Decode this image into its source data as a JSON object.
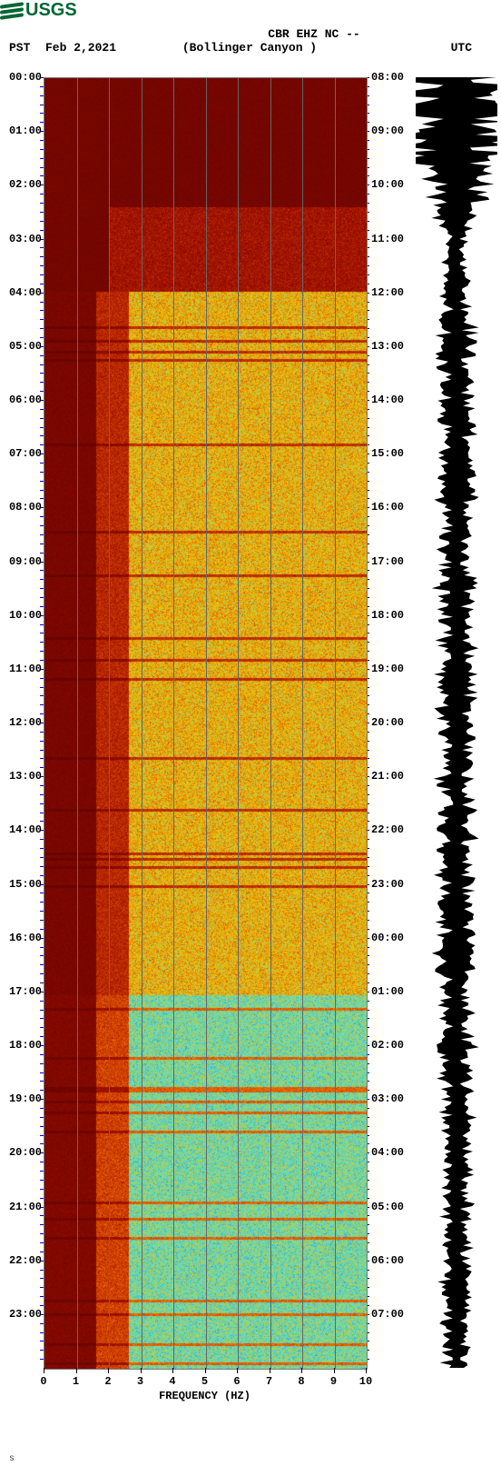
{
  "logo": {
    "text": "USGS",
    "color": "#006633"
  },
  "header": {
    "station_code": "CBR EHZ NC --",
    "location": "(Bollinger Canyon )",
    "tz_left": "PST",
    "tz_right": "UTC",
    "date": "Feb 2,2021"
  },
  "spectrogram": {
    "type": "spectrogram",
    "x_axis": {
      "title": "FREQUENCY (HZ)",
      "min": 0,
      "max": 10,
      "ticks": [
        0,
        1,
        2,
        3,
        4,
        5,
        6,
        7,
        8,
        9,
        10
      ],
      "tick_color": "#000000",
      "title_fontsize": 13
    },
    "left_time_axis": {
      "label": "PST",
      "ticks": [
        "00:00",
        "01:00",
        "02:00",
        "03:00",
        "04:00",
        "05:00",
        "06:00",
        "07:00",
        "08:00",
        "09:00",
        "10:00",
        "11:00",
        "12:00",
        "13:00",
        "14:00",
        "15:00",
        "16:00",
        "17:00",
        "18:00",
        "19:00",
        "20:00",
        "21:00",
        "22:00",
        "23:00"
      ],
      "tick_color": "#0000cc",
      "fontsize": 12
    },
    "right_time_axis": {
      "label": "UTC",
      "ticks": [
        "08:00",
        "09:00",
        "10:00",
        "11:00",
        "12:00",
        "13:00",
        "14:00",
        "15:00",
        "16:00",
        "17:00",
        "18:00",
        "19:00",
        "20:00",
        "21:00",
        "22:00",
        "23:00",
        "00:00",
        "01:00",
        "02:00",
        "03:00",
        "04:00",
        "05:00",
        "06:00",
        "07:00"
      ],
      "tick_color": "#0000cc",
      "fontsize": 12
    },
    "gridlines": {
      "vertical_at": [
        1,
        2,
        3,
        4,
        5,
        6,
        7,
        8,
        9
      ],
      "color": "#666666"
    },
    "colormap": {
      "low": "#5a0000",
      "midlow": "#a01000",
      "mid": "#e05000",
      "midhigh": "#f0c000",
      "high": "#60e0c0",
      "veryhigh": "#2090e0"
    },
    "regions": [
      {
        "t_from": 0.0,
        "t_to": 0.1,
        "desc": "uniform low (dark red)",
        "freq_profile": "low"
      },
      {
        "t_from": 0.1,
        "t_to": 0.165,
        "desc": "low with speckles above 3Hz",
        "freq_profile": "lowspeck"
      },
      {
        "t_from": 0.165,
        "t_to": 0.71,
        "desc": "active mid/high 3-10Hz, low below 2Hz",
        "freq_profile": "active"
      },
      {
        "t_from": 0.71,
        "t_to": 1.0,
        "desc": "very active high/blue 3-10Hz",
        "freq_profile": "veryactive"
      }
    ],
    "freq_low_band_hz": [
      0,
      2.0
    ],
    "background_color": "#5a0000",
    "border_color": "#7a7a7a"
  },
  "waveform": {
    "color": "#000000",
    "background": "#ffffff",
    "envelope_norm": [
      1.0,
      1.0,
      1.0,
      1.0,
      0.95,
      0.88,
      0.8,
      0.7,
      0.6,
      0.5,
      0.38,
      0.28,
      0.22,
      0.18,
      0.25,
      0.22,
      0.28,
      0.24,
      0.3,
      0.36,
      0.32,
      0.34,
      0.3,
      0.28,
      0.32,
      0.35,
      0.3,
      0.33,
      0.31,
      0.3,
      0.32,
      0.28,
      0.34,
      0.3,
      0.28,
      0.33,
      0.3,
      0.29,
      0.35,
      0.4,
      0.32,
      0.3,
      0.26,
      0.33,
      0.31,
      0.36,
      0.3,
      0.32,
      0.34,
      0.3,
      0.28,
      0.3,
      0.33,
      0.35,
      0.3,
      0.28,
      0.32,
      0.3,
      0.33,
      0.31,
      0.3,
      0.34,
      0.32,
      0.3,
      0.33,
      0.31,
      0.3,
      0.42,
      0.34,
      0.3,
      0.28,
      0.3,
      0.26,
      0.28,
      0.36,
      0.27,
      0.3,
      0.28,
      0.26,
      0.3,
      0.27,
      0.25,
      0.28,
      0.3,
      0.26,
      0.24,
      0.28,
      0.26,
      0.25,
      0.27,
      0.25,
      0.24,
      0.3,
      0.26,
      0.24,
      0.26,
      0.25,
      0.24,
      0.26,
      0.18
    ]
  },
  "footer_mark": "s"
}
